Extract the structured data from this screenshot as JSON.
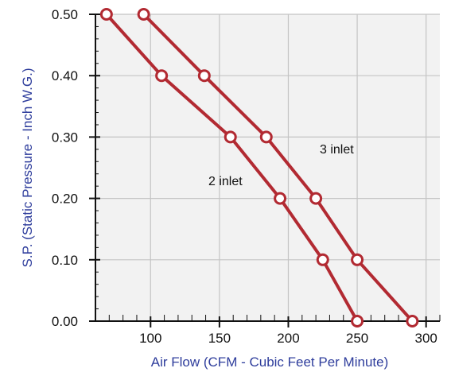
{
  "chart_data": {
    "type": "line",
    "title": "",
    "xlabel": "Air Flow (CFM - Cubic Feet Per Minute)",
    "ylabel": "S.P. (Static Pressure - Inch W.G.)",
    "xlim": [
      60,
      310
    ],
    "ylim": [
      0,
      0.5
    ],
    "x_ticks": [
      100,
      150,
      200,
      250,
      300
    ],
    "x_tick_labels": [
      "100",
      "150",
      "200",
      "250",
      "300"
    ],
    "y_ticks": [
      0,
      0.1,
      0.2,
      0.3,
      0.4,
      0.5
    ],
    "y_tick_labels": [
      "0.00",
      "0.10",
      "0.20",
      "0.30",
      "0.40",
      "0.50"
    ],
    "grid": true,
    "colors": {
      "series": "#b22a32",
      "axis_title": "#2e3d9c",
      "plot_background": "#f2f2f2",
      "grid": "#c4c4c4"
    },
    "series": [
      {
        "name": "2 inlet",
        "points": [
          {
            "x": 68,
            "y": 0.5
          },
          {
            "x": 108,
            "y": 0.4
          },
          {
            "x": 158,
            "y": 0.3
          },
          {
            "x": 194,
            "y": 0.2
          },
          {
            "x": 225,
            "y": 0.1
          },
          {
            "x": 250,
            "y": 0.0
          }
        ]
      },
      {
        "name": "3 inlet",
        "points": [
          {
            "x": 95,
            "y": 0.5
          },
          {
            "x": 139,
            "y": 0.4
          },
          {
            "x": 184,
            "y": 0.3
          },
          {
            "x": 220,
            "y": 0.2
          },
          {
            "x": 250,
            "y": 0.1
          },
          {
            "x": 290,
            "y": 0.0
          }
        ]
      }
    ]
  }
}
